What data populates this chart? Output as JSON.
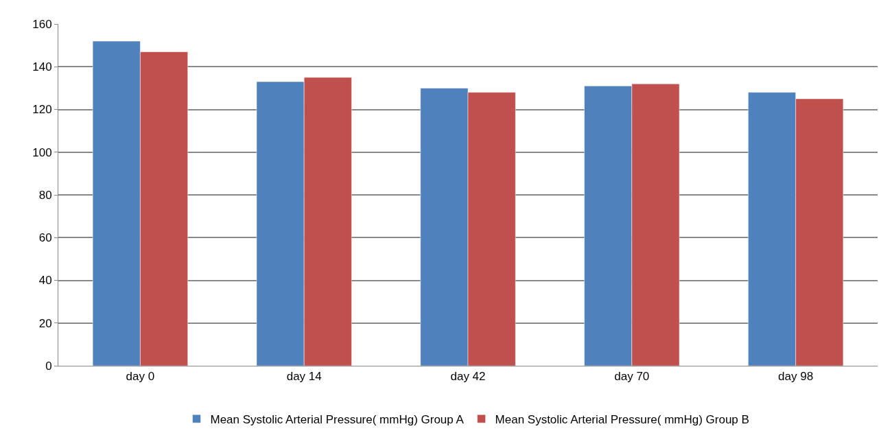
{
  "chart_data": {
    "type": "bar",
    "categories": [
      "day 0",
      "day 14",
      "day 42",
      "day 70",
      "day 98"
    ],
    "series": [
      {
        "name": "Mean Systolic Arterial Pressure( mmHg) Group A",
        "color": "#4f81bd",
        "values": [
          152,
          133,
          130,
          131,
          128
        ]
      },
      {
        "name": "Mean Systolic Arterial Pressure( mmHg) Group B",
        "color": "#c0504d",
        "values": [
          147,
          135,
          128,
          132,
          125
        ]
      }
    ],
    "ylim": [
      0,
      160
    ],
    "yticks": [
      0,
      20,
      40,
      60,
      80,
      100,
      120,
      140,
      160
    ],
    "grid": "y",
    "legend": "bottom"
  }
}
